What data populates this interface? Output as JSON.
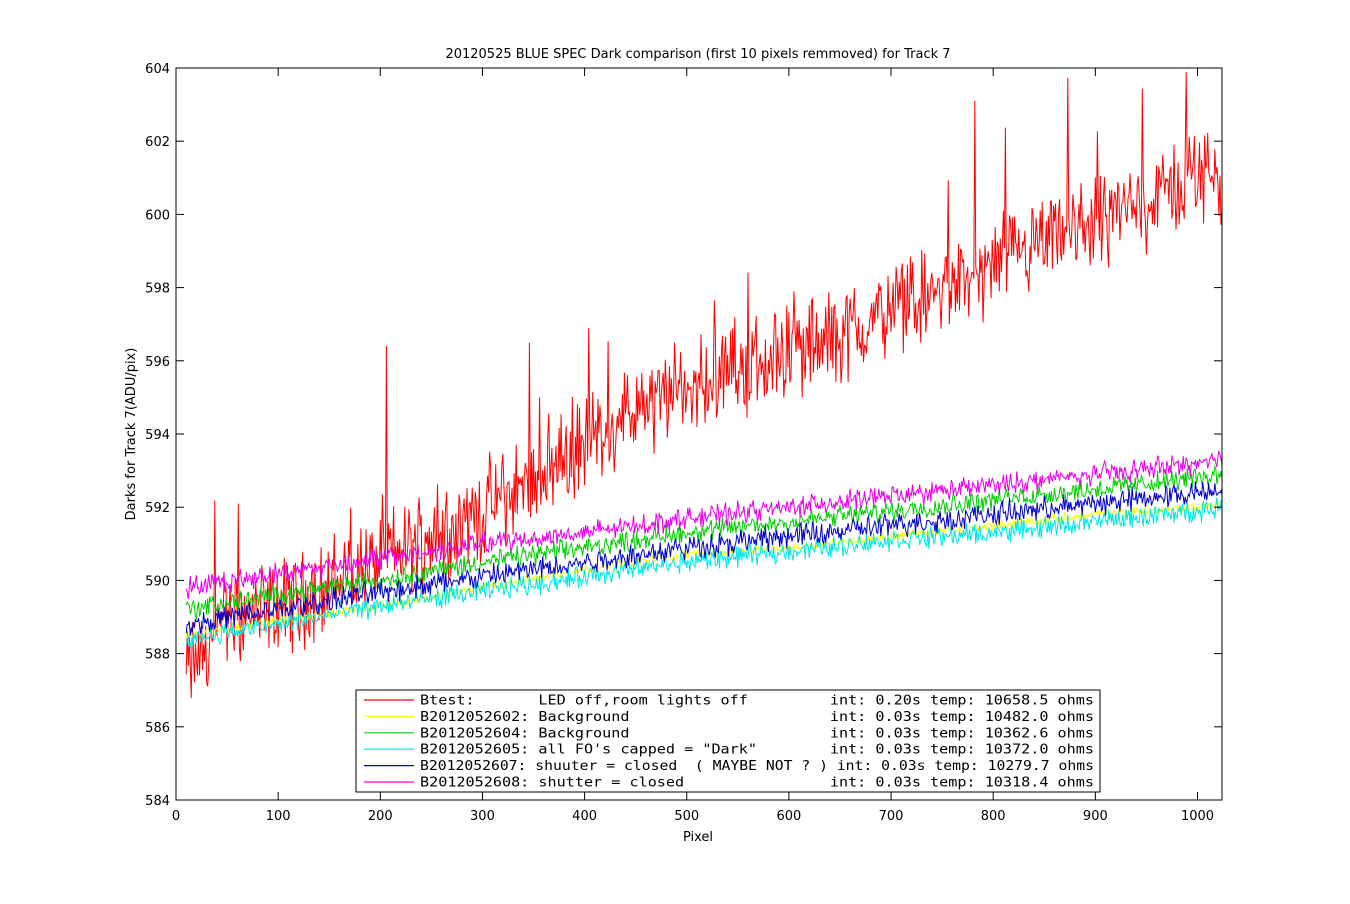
{
  "chart_data": {
    "type": "line",
    "title": "20120525 BLUE SPEC Dark comparison (first 10 pixels remmoved) for Track 7",
    "xlabel": "Pixel",
    "ylabel": "Darks for Track 7(ADU/pix)",
    "xlim": [
      0,
      1024
    ],
    "ylim": [
      584,
      604
    ],
    "xticks": [
      0,
      100,
      200,
      300,
      400,
      500,
      600,
      700,
      800,
      900,
      1000
    ],
    "yticks": [
      584,
      586,
      588,
      590,
      592,
      594,
      596,
      598,
      600,
      602,
      604
    ],
    "grid": false,
    "legend_position": "bottom-center",
    "x_start": 10,
    "x_end": 1024,
    "series": [
      {
        "name": "Btest:       LED off,room lights off         int: 0.20s temp: 10658.5 ohms",
        "color": "#ff0000",
        "x": [
          10,
          50,
          100,
          150,
          200,
          250,
          300,
          350,
          400,
          450,
          500,
          550,
          600,
          650,
          700,
          750,
          800,
          850,
          900,
          950,
          1000,
          1024
        ],
        "y": [
          587.5,
          588.9,
          589.3,
          589.8,
          590.6,
          591.2,
          591.9,
          592.8,
          593.8,
          594.6,
          595.2,
          595.8,
          596.2,
          596.7,
          597.3,
          597.9,
          598.5,
          599.1,
          599.8,
          600.3,
          601.1,
          601.2
        ],
        "amplitude": 1.6
      },
      {
        "name": "B2012052602: Background                      int: 0.03s temp: 10482.0 ohms",
        "color": "#ffff00",
        "x": [
          10,
          100,
          200,
          300,
          400,
          500,
          600,
          700,
          800,
          900,
          1000,
          1024
        ],
        "y": [
          588.5,
          588.9,
          589.3,
          589.8,
          590.3,
          590.7,
          590.9,
          591.2,
          591.5,
          591.8,
          592.0,
          592.1
        ],
        "amplitude": 0.15
      },
      {
        "name": "B2012052604: Background                      int: 0.03s temp: 10362.6 ohms",
        "color": "#00cc00",
        "x": [
          10,
          100,
          200,
          300,
          400,
          500,
          600,
          700,
          800,
          900,
          1000,
          1024
        ],
        "y": [
          589.2,
          589.6,
          590.0,
          590.5,
          590.9,
          591.3,
          591.6,
          591.9,
          592.2,
          592.5,
          592.8,
          592.9
        ],
        "amplitude": 0.35
      },
      {
        "name": "B2012052605: all FO's capped = \"Dark\"        int: 0.03s temp: 10372.0 ohms",
        "color": "#00e5e5",
        "x": [
          10,
          100,
          200,
          300,
          400,
          500,
          600,
          700,
          800,
          900,
          1000,
          1024
        ],
        "y": [
          588.4,
          588.8,
          589.3,
          589.7,
          590.1,
          590.5,
          590.8,
          591.1,
          591.3,
          591.6,
          591.9,
          592.0
        ],
        "amplitude": 0.35
      },
      {
        "name": "B2012052607: shuuter = closed  ( MAYBE NOT ? ) int: 0.03s temp: 10279.7 ohms",
        "color": "#0000cc",
        "x": [
          10,
          100,
          200,
          300,
          400,
          500,
          600,
          700,
          800,
          900,
          1000,
          1024
        ],
        "y": [
          588.8,
          589.2,
          589.7,
          590.1,
          590.5,
          590.9,
          591.2,
          591.5,
          591.8,
          592.1,
          592.4,
          592.5
        ],
        "amplitude": 0.4
      },
      {
        "name": "B2012052608: shutter = closed                int: 0.03s temp: 10318.4 ohms",
        "color": "#e600e6",
        "x": [
          10,
          100,
          200,
          300,
          400,
          500,
          600,
          700,
          800,
          900,
          1000,
          1024
        ],
        "y": [
          589.8,
          590.2,
          590.6,
          591.0,
          591.3,
          591.7,
          592.0,
          592.3,
          592.6,
          592.9,
          593.2,
          593.3
        ],
        "amplitude": 0.35
      }
    ]
  }
}
